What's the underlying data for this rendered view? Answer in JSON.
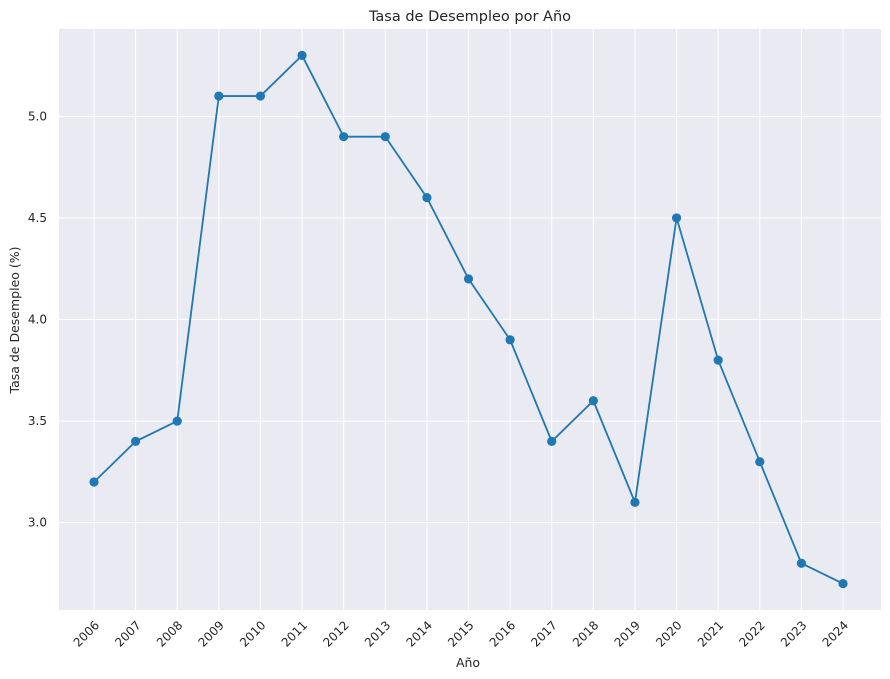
{
  "chart_data": {
    "type": "line",
    "title": "Tasa de Desempleo por Año",
    "xlabel": "Año",
    "ylabel": "Tasa de Desempleo (%)",
    "x": [
      "2006",
      "2007",
      "2008",
      "2009",
      "2010",
      "2011",
      "2012",
      "2013",
      "2014",
      "2015",
      "2016",
      "2017",
      "2018",
      "2019",
      "2020",
      "2021",
      "2022",
      "2023",
      "2024"
    ],
    "values": [
      3.2,
      3.4,
      3.5,
      5.1,
      5.1,
      5.3,
      4.9,
      4.9,
      4.6,
      4.2,
      3.9,
      3.4,
      3.6,
      3.1,
      4.5,
      3.8,
      3.3,
      2.8,
      2.7
    ],
    "yticks": [
      "3.0",
      "3.5",
      "4.0",
      "4.5",
      "5.0"
    ],
    "ylim": [
      2.57,
      5.43
    ],
    "grid": true,
    "colors": {
      "line": "#1f77b4",
      "background": "#eaeaf2",
      "grid": "#ffffff"
    }
  }
}
